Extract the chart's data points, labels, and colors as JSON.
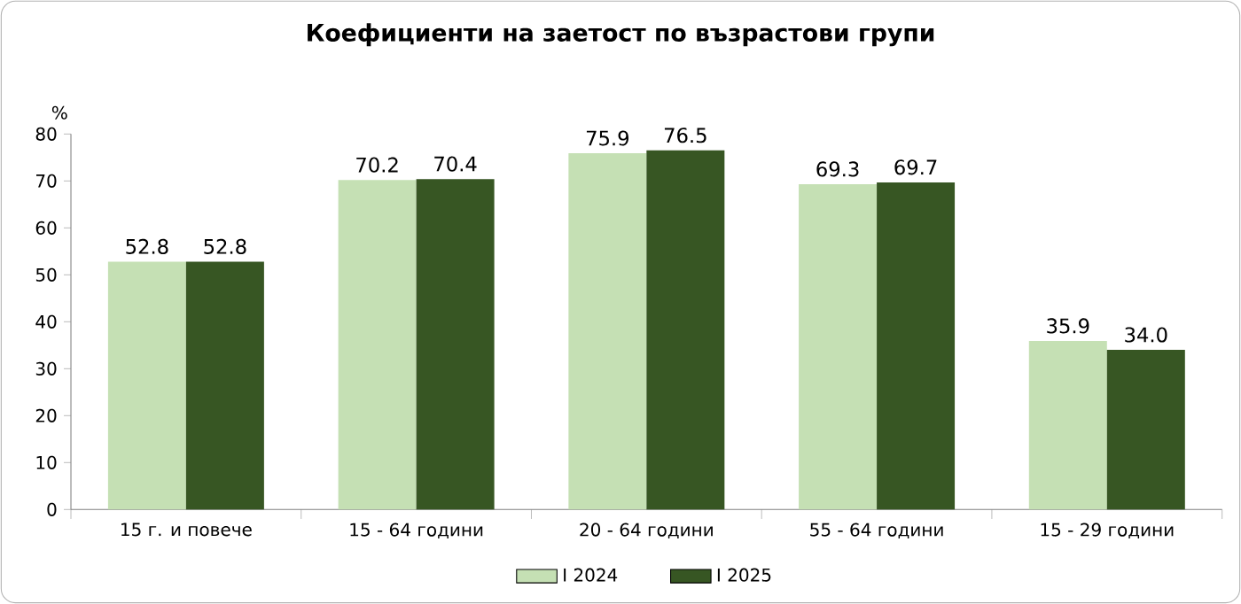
{
  "chart_data": {
    "type": "bar",
    "title": "Коефициенти на заетост по възрастови групи",
    "ylabel": "%",
    "categories": [
      "15 г. и повече",
      "15 - 64 години",
      "20 - 64 години",
      "55 - 64 години",
      "15 - 29 години"
    ],
    "series": [
      {
        "name": "I 2024",
        "color": "#c5e0b4",
        "values": [
          52.8,
          70.2,
          75.9,
          69.3,
          35.9
        ],
        "value_labels": [
          "52.8",
          "70.2",
          "75.9",
          "69.3",
          "35.9"
        ]
      },
      {
        "name": "I 2025",
        "color": "#375623",
        "values": [
          52.8,
          70.4,
          76.5,
          69.7,
          34.0
        ],
        "value_labels": [
          "52.8",
          "70.4",
          "76.5",
          "69.7",
          "34.0"
        ]
      }
    ],
    "ylim": [
      0,
      80
    ],
    "yticks": [
      0,
      10,
      20,
      30,
      40,
      50,
      60,
      70,
      80
    ],
    "grid": false,
    "legend": "bottom"
  }
}
